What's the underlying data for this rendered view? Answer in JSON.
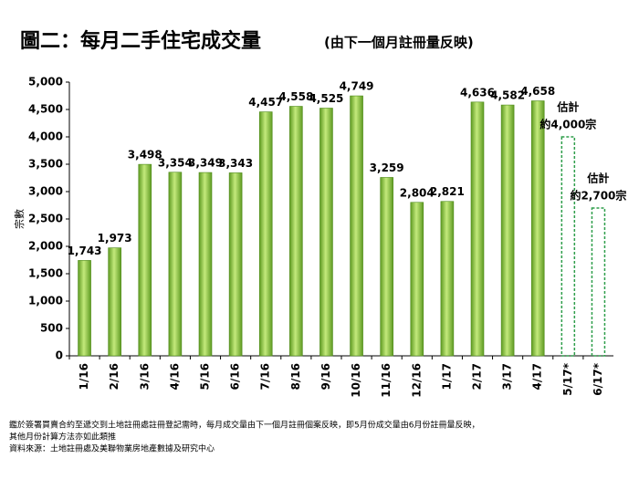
{
  "chart_data": {
    "type": "bar",
    "title": "圖二：每月二手住宅成交量",
    "subtitle": "(由下一個月註冊量反映)",
    "y_label": "宗數",
    "categories": [
      "1/16",
      "2/16",
      "3/16",
      "4/16",
      "5/16",
      "6/16",
      "7/16",
      "8/16",
      "9/16",
      "10/16",
      "11/16",
      "12/16",
      "1/17",
      "2/17",
      "3/17",
      "4/17",
      "5/17*",
      "6/17*"
    ],
    "series": [
      {
        "color": "#7cbf2f",
        "style": "solid",
        "values": [
          1743,
          1973,
          3498,
          3354,
          3349,
          3343,
          4457,
          4558,
          4525,
          4749,
          3259,
          2804,
          2821,
          4636,
          4582,
          4658,
          null,
          null
        ],
        "value_labels": [
          "1,743",
          "1,973",
          "3,498",
          "3,354",
          "3,349",
          "3,343",
          "4,457",
          "4,558",
          "4,525",
          "4,749",
          "3,259",
          "2,804",
          "2,821",
          "4,636",
          "4,582",
          "4,658",
          null,
          null
        ]
      },
      {
        "color": "#2e9e4a",
        "style": "dashed",
        "label_color": "#c00000",
        "values": [
          null,
          null,
          null,
          null,
          null,
          null,
          null,
          null,
          null,
          null,
          null,
          null,
          null,
          null,
          null,
          null,
          4000,
          2700
        ],
        "value_labels": [
          null,
          null,
          null,
          null,
          null,
          null,
          null,
          null,
          null,
          null,
          null,
          null,
          null,
          null,
          null,
          null,
          "約4,000宗",
          "約2,700宗"
        ],
        "annotations": [
          null,
          null,
          null,
          null,
          null,
          null,
          null,
          null,
          null,
          null,
          null,
          null,
          null,
          null,
          null,
          null,
          "估計",
          "估計"
        ]
      }
    ],
    "ylim": [
      0,
      5000
    ],
    "yticks": [
      0,
      500,
      {
        "value": 1000,
        "label": "1,000"
      },
      {
        "value": 1500,
        "label": "1,500"
      },
      {
        "value": 2000,
        "label": "2,000"
      },
      {
        "value": 2500,
        "label": "2,500"
      },
      {
        "value": 3000,
        "label": "3,000"
      },
      {
        "value": 3500,
        "label": "3,500"
      },
      {
        "value": 4000,
        "label": "4,000"
      },
      {
        "value": 4500,
        "label": "4,500"
      },
      {
        "value": 5000,
        "label": "5,000"
      }
    ],
    "grid": false,
    "notes": [
      "鑑於簽署買賣合約至遞交到土地註冊處註冊登記需時，每月成交量由下一個月註冊個案反映，即5月份成交量由6月份註冊量反映，",
      "其他月份計算方法亦如此類推",
      "資料來源：土地註冊處及美聯物業房地產數據及研究中心"
    ]
  }
}
